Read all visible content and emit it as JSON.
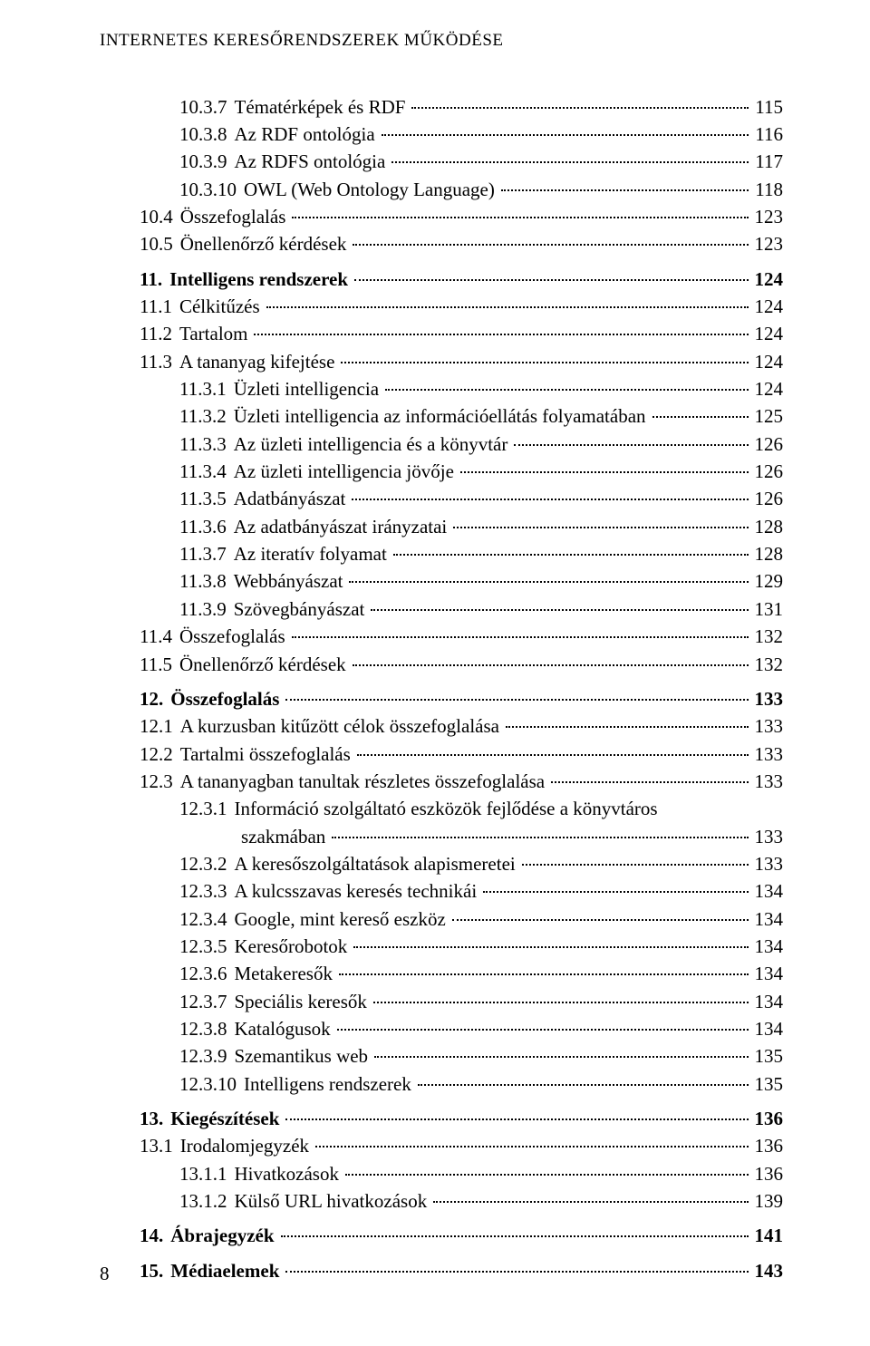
{
  "header": "INTERNETES KERESŐRENDSZEREK MŰKÖDÉSE",
  "page_number": "8",
  "entries": [
    {
      "num": "10.3.7",
      "title": "Tématérképek és RDF",
      "page": "115",
      "indent": 3
    },
    {
      "num": "10.3.8",
      "title": "Az RDF ontológia",
      "page": "116",
      "indent": 3
    },
    {
      "num": "10.3.9",
      "title": "Az RDFS ontológia",
      "page": "117",
      "indent": 3
    },
    {
      "num": "10.3.10",
      "title": "OWL (Web Ontology Language)",
      "page": "118",
      "indent": 3
    },
    {
      "num": "10.4",
      "title": "Összefoglalás",
      "page": "123",
      "indent": 2
    },
    {
      "num": "10.5",
      "title": "Önellenőrző kérdések",
      "page": "123",
      "indent": 2
    },
    {
      "num": "11.",
      "title": "Intelligens rendszerek",
      "page": "124",
      "indent": 1,
      "bold": true,
      "gap": true
    },
    {
      "num": "11.1",
      "title": "Célkitűzés",
      "page": "124",
      "indent": 2
    },
    {
      "num": "11.2",
      "title": "Tartalom",
      "page": "124",
      "indent": 2
    },
    {
      "num": "11.3",
      "title": "A tananyag kifejtése",
      "page": "124",
      "indent": 2
    },
    {
      "num": "11.3.1",
      "title": "Üzleti intelligencia",
      "page": "124",
      "indent": 3
    },
    {
      "num": "11.3.2",
      "title": "Üzleti intelligencia az információellátás folyamatában",
      "page": "125",
      "indent": 3
    },
    {
      "num": "11.3.3",
      "title": "Az üzleti intelligencia és a könyvtár",
      "page": "126",
      "indent": 3
    },
    {
      "num": "11.3.4",
      "title": "Az üzleti intelligencia jövője",
      "page": "126",
      "indent": 3
    },
    {
      "num": "11.3.5",
      "title": "Adatbányászat",
      "page": "126",
      "indent": 3
    },
    {
      "num": "11.3.6",
      "title": "Az adatbányászat irányzatai",
      "page": "128",
      "indent": 3
    },
    {
      "num": "11.3.7",
      "title": "Az iteratív folyamat",
      "page": "128",
      "indent": 3
    },
    {
      "num": "11.3.8",
      "title": "Webbányászat",
      "page": "129",
      "indent": 3
    },
    {
      "num": "11.3.9",
      "title": "Szövegbányászat",
      "page": "131",
      "indent": 3
    },
    {
      "num": "11.4",
      "title": "Összefoglalás",
      "page": "132",
      "indent": 2
    },
    {
      "num": "11.5",
      "title": "Önellenőrző kérdések",
      "page": "132",
      "indent": 2
    },
    {
      "num": "12.",
      "title": "Összefoglalás",
      "page": "133",
      "indent": 1,
      "bold": true,
      "gap": true
    },
    {
      "num": "12.1",
      "title": "A kurzusban kitűzött célok összefoglalása",
      "page": "133",
      "indent": 2
    },
    {
      "num": "12.2",
      "title": "Tartalmi összefoglalás",
      "page": "133",
      "indent": 2
    },
    {
      "num": "12.3",
      "title": "A tananyagban tanultak részletes összefoglalása",
      "page": "133",
      "indent": 2
    },
    {
      "num": "12.3.1",
      "title_line1": "Információ szolgáltató eszközök fejlődése a könyvtáros",
      "title_line2": "szakmában",
      "page": "133",
      "indent": 3,
      "wrap": true
    },
    {
      "num": "12.3.2",
      "title": "A keresőszolgáltatások alapismeretei",
      "page": "133",
      "indent": 3
    },
    {
      "num": "12.3.3",
      "title": "A kulcsszavas keresés technikái",
      "page": "134",
      "indent": 3
    },
    {
      "num": "12.3.4",
      "title": "Google, mint kereső eszköz",
      "page": "134",
      "indent": 3
    },
    {
      "num": "12.3.5",
      "title": "Keresőrobotok",
      "page": "134",
      "indent": 3
    },
    {
      "num": "12.3.6",
      "title": "Metakeresők",
      "page": "134",
      "indent": 3
    },
    {
      "num": "12.3.7",
      "title": "Speciális keresők",
      "page": "134",
      "indent": 3
    },
    {
      "num": "12.3.8",
      "title": "Katalógusok",
      "page": "134",
      "indent": 3
    },
    {
      "num": "12.3.9",
      "title": "Szemantikus web",
      "page": "135",
      "indent": 3
    },
    {
      "num": "12.3.10",
      "title": "Intelligens rendszerek",
      "page": "135",
      "indent": 3
    },
    {
      "num": "13.",
      "title": "Kiegészítések",
      "page": "136",
      "indent": 1,
      "bold": true,
      "gap": true
    },
    {
      "num": "13.1",
      "title": "Irodalomjegyzék",
      "page": "136",
      "indent": 2
    },
    {
      "num": "13.1.1",
      "title": "Hivatkozások",
      "page": "136",
      "indent": 3
    },
    {
      "num": "13.1.2",
      "title": "Külső URL hivatkozások",
      "page": "139",
      "indent": 3
    },
    {
      "num": "14.",
      "title": "Ábrajegyzék",
      "page": "141",
      "indent": 1,
      "bold": true,
      "gap": true
    },
    {
      "num": "15.",
      "title": "Médiaelemek",
      "page": "143",
      "indent": 1,
      "bold": true,
      "gap": true
    }
  ]
}
